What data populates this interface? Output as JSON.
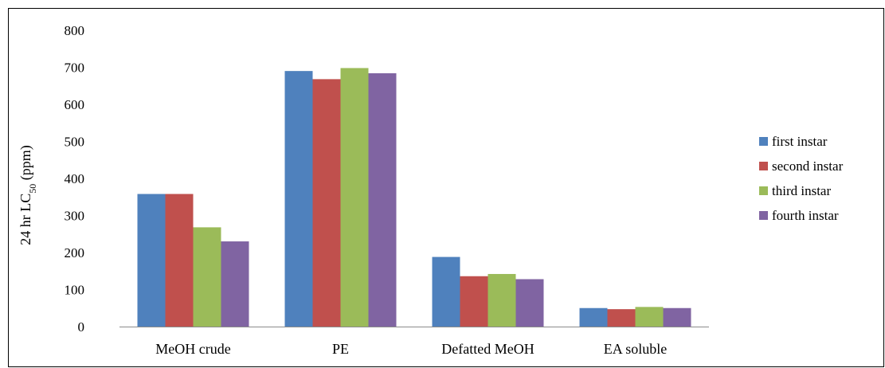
{
  "chart_data": {
    "type": "bar",
    "title": "",
    "xlabel": "",
    "ylabel": "24 hr LC50 (ppm)",
    "ylabel_parts": {
      "prefix": "24 hr LC",
      "subscript": "50",
      "suffix": " (ppm)"
    },
    "ylim": [
      0,
      800
    ],
    "yticks": [
      0,
      100,
      200,
      300,
      400,
      500,
      600,
      700,
      800
    ],
    "grid": false,
    "legend": "right",
    "categories": [
      "MeOH crude",
      "PE",
      "Defatted MeOH",
      "EA soluble"
    ],
    "series": [
      {
        "name": "first instar",
        "color": "#4f81bd",
        "values": [
          358,
          690,
          188,
          50
        ]
      },
      {
        "name": "second instar",
        "color": "#c0504d",
        "values": [
          358,
          668,
          136,
          47
        ]
      },
      {
        "name": "third instar",
        "color": "#9bbb59",
        "values": [
          268,
          698,
          142,
          53
        ]
      },
      {
        "name": "fourth instar",
        "color": "#8064a2",
        "values": [
          230,
          684,
          128,
          50
        ]
      }
    ]
  }
}
